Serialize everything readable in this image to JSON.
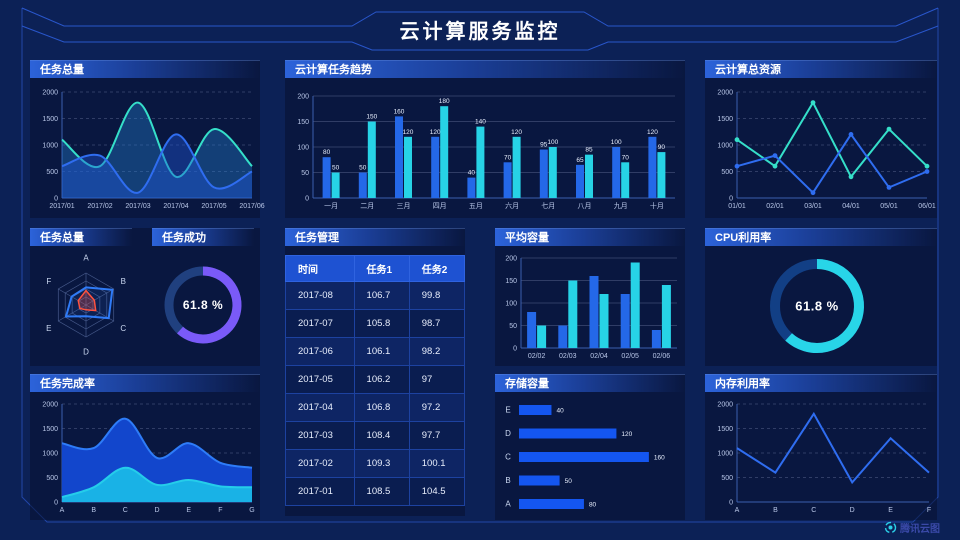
{
  "title": "云计算服务监控",
  "watermark": {
    "text": "腾讯云图"
  },
  "colors": {
    "background": "#0c2156",
    "panel": "rgba(7,17,48,0.55)",
    "header_accent": "#2c63da",
    "blue": "#2468e8",
    "cyan": "#27d3e6",
    "teal_line": "#35dfc9",
    "purple": "#7a5af8",
    "red": "#ff5340",
    "axis_text": "#b9c7e8",
    "frame": "#2c5cd8",
    "table_header": "#1e52d2"
  },
  "chart_data": [
    {
      "id": "task_total_area",
      "type": "area",
      "title": "任务总量",
      "x": [
        "2017/01",
        "2017/02",
        "2017/03",
        "2017/04",
        "2017/05",
        "2017/06"
      ],
      "series": [
        {
          "name": "series-cyan",
          "color": "#35dfc9",
          "fill": "rgba(36,130,210,0.38)",
          "values": [
            1100,
            600,
            1800,
            400,
            1300,
            600
          ]
        },
        {
          "name": "series-blue",
          "color": "#2f6df0",
          "fill": "rgba(30,86,214,0.42)",
          "values": [
            600,
            800,
            100,
            1200,
            200,
            500
          ]
        }
      ],
      "ylim": [
        0,
        2000
      ],
      "yticks": [
        0,
        500,
        1000,
        1500,
        2000
      ],
      "smooth": true,
      "grid": "dashed",
      "legend": "none"
    },
    {
      "id": "task_trend_bar",
      "type": "bar",
      "title": "云计算任务趋势",
      "categories": [
        "一月",
        "二月",
        "三月",
        "四月",
        "五月",
        "六月",
        "七月",
        "八月",
        "九月",
        "十月"
      ],
      "series": [
        {
          "name": "series-blue",
          "color": "#2468e8",
          "values": [
            80,
            50,
            160,
            120,
            40,
            70,
            95,
            65,
            100,
            120
          ]
        },
        {
          "name": "series-cyan",
          "color": "#27d3e6",
          "values": [
            50,
            150,
            120,
            180,
            140,
            120,
            100,
            85,
            70,
            90
          ]
        }
      ],
      "ylim": [
        0,
        200
      ],
      "yticks": [
        0,
        50,
        100,
        150,
        200
      ],
      "value_labels": true,
      "grid": "solid"
    },
    {
      "id": "total_resource_line",
      "type": "line",
      "title": "云计算总资源",
      "x": [
        "01/01",
        "02/01",
        "03/01",
        "04/01",
        "05/01",
        "06/01"
      ],
      "series": [
        {
          "name": "series-cyan",
          "color": "#35dfc9",
          "values": [
            1100,
            600,
            1800,
            400,
            1300,
            600
          ],
          "markers": true
        },
        {
          "name": "series-blue",
          "color": "#2f6df0",
          "values": [
            600,
            800,
            100,
            1200,
            200,
            500
          ],
          "markers": true
        }
      ],
      "ylim": [
        0,
        2000
      ],
      "yticks": [
        0,
        500,
        1000,
        1500,
        2000
      ],
      "grid": "dashed"
    },
    {
      "id": "task_total_radar",
      "type": "radar",
      "title": "任务总量",
      "axes": [
        "A",
        "B",
        "C",
        "D",
        "E",
        "F"
      ],
      "max": 100,
      "series": [
        {
          "name": "series-blue",
          "color": "#2f7bf7",
          "fill": "rgba(47,123,247,0.10)",
          "values": [
            55,
            95,
            82,
            35,
            72,
            52
          ]
        },
        {
          "name": "series-red",
          "color": "#ff5340",
          "fill": "rgba(255,83,64,0.28)",
          "values": [
            45,
            30,
            35,
            15,
            22,
            28
          ]
        }
      ]
    },
    {
      "id": "task_success_gauge",
      "type": "gauge",
      "title": "任务成功",
      "percent": 61.8,
      "label": "61.8 %",
      "color": "#7a5af8",
      "track": "#20407f"
    },
    {
      "id": "task_table",
      "type": "table",
      "title": "任务管理",
      "columns": [
        "时间",
        "任务1",
        "任务2"
      ],
      "rows": [
        [
          "2017-08",
          "106.7",
          "99.8"
        ],
        [
          "2017-07",
          "105.8",
          "98.7"
        ],
        [
          "2017-06",
          "106.1",
          "98.2"
        ],
        [
          "2017-05",
          "106.2",
          "97"
        ],
        [
          "2017-04",
          "106.8",
          "97.2"
        ],
        [
          "2017-03",
          "108.4",
          "97.7"
        ],
        [
          "2017-02",
          "109.3",
          "100.1"
        ],
        [
          "2017-01",
          "108.5",
          "104.5"
        ]
      ]
    },
    {
      "id": "avg_capacity_bar",
      "type": "bar",
      "title": "平均容量",
      "categories": [
        "02/02",
        "02/03",
        "02/04",
        "02/05",
        "02/06"
      ],
      "series": [
        {
          "name": "series-blue",
          "color": "#2468e8",
          "values": [
            80,
            50,
            160,
            120,
            40
          ]
        },
        {
          "name": "series-cyan",
          "color": "#27d3e6",
          "values": [
            50,
            150,
            120,
            190,
            140
          ]
        }
      ],
      "ylim": [
        0,
        200
      ],
      "yticks": [
        0,
        50,
        100,
        150,
        200
      ],
      "value_labels": false,
      "grid": "solid"
    },
    {
      "id": "cpu_gauge",
      "type": "gauge",
      "title": "CPU利用率",
      "percent": 61.8,
      "label": "61.8 %",
      "color": "#28d5e8",
      "track": "#123f85"
    },
    {
      "id": "completion_area",
      "type": "area_stacked",
      "title": "任务完成率",
      "x": [
        "A",
        "B",
        "C",
        "D",
        "E",
        "F",
        "G"
      ],
      "series": [
        {
          "name": "total-blue",
          "color": "#2e7cf8",
          "fill": "#1246cc",
          "values": [
            1200,
            1100,
            1700,
            900,
            1200,
            800,
            700
          ]
        },
        {
          "name": "bottom-cyan",
          "color": "#25cdea",
          "fill": "#19b2e6",
          "values": [
            100,
            300,
            700,
            350,
            450,
            320,
            300
          ]
        }
      ],
      "ylim": [
        0,
        2000
      ],
      "yticks": [
        0,
        500,
        1000,
        1500,
        2000
      ],
      "smooth": true,
      "grid": "dashed"
    },
    {
      "id": "storage_hbar",
      "type": "hbar",
      "title": "存储容量",
      "categories": [
        "E",
        "D",
        "C",
        "B",
        "A"
      ],
      "values": [
        40,
        120,
        160,
        50,
        80
      ],
      "color": "#1456f0",
      "xmax": 170
    },
    {
      "id": "memory_line",
      "type": "line",
      "title": "内存利用率",
      "x": [
        "A",
        "B",
        "C",
        "D",
        "E",
        "F"
      ],
      "series": [
        {
          "name": "series-blue",
          "color": "#2f6df0",
          "values": [
            1100,
            600,
            1800,
            400,
            1300,
            600
          ],
          "markers": false
        }
      ],
      "ylim": [
        0,
        2000
      ],
      "yticks": [
        0,
        500,
        1000,
        1500,
        2000
      ],
      "grid": "dashed"
    }
  ]
}
